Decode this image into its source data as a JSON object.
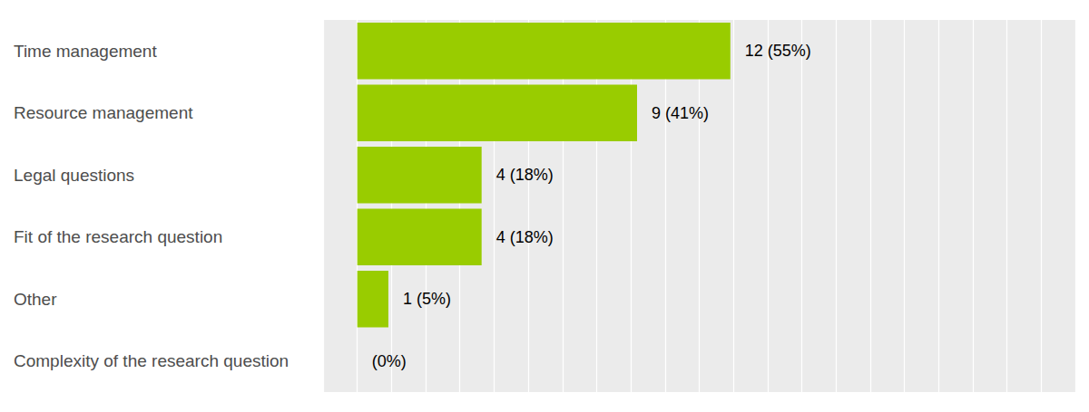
{
  "chart_data": {
    "type": "bar",
    "orientation": "horizontal",
    "categories": [
      "Time management",
      "Resource management",
      "Legal questions",
      "Fit of the research question",
      "Other",
      "Complexity of the research question"
    ],
    "values": [
      54.55,
      40.91,
      18.18,
      18.18,
      4.55,
      0
    ],
    "value_labels": [
      "12 (55%)",
      "9 (41%)",
      "4 (18%)",
      "4 (18%)",
      "1 (5%)",
      "(0%)"
    ],
    "color": "#99cc00",
    "xlim": [
      -5,
      105
    ],
    "xticks": [
      -5,
      0,
      5,
      10,
      15,
      20,
      25,
      30,
      35,
      40,
      45,
      50,
      55,
      60,
      65,
      70,
      75,
      80,
      85,
      90,
      95,
      100,
      105
    ],
    "grid": true,
    "data_labels": true,
    "tick_labels": "y"
  }
}
